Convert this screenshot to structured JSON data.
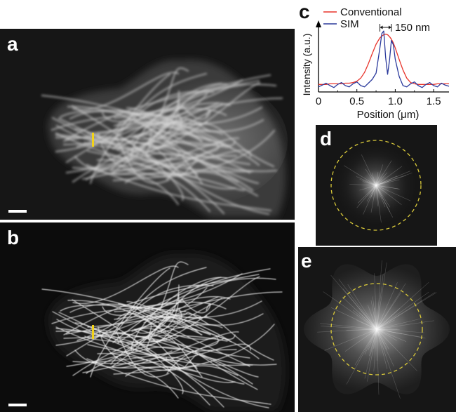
{
  "panels": {
    "a": {
      "letter": "a"
    },
    "b": {
      "letter": "b"
    },
    "c": {
      "letter": "c"
    },
    "d": {
      "letter": "d"
    },
    "e": {
      "letter": "e"
    }
  },
  "colors": {
    "conventional": "#e8332a",
    "sim": "#2b3a9c",
    "marker": "#f2d318",
    "circle": "#d9c93a"
  },
  "chart_data": {
    "type": "line",
    "title": "",
    "xlabel": "Position (μm)",
    "ylabel": "Intensity (a.u.)",
    "xlim": [
      0,
      1.7
    ],
    "ylim": [
      0,
      1.05
    ],
    "xticks": [
      "0",
      "0.5",
      "1.0",
      "1.5"
    ],
    "xtick_values": [
      0,
      0.5,
      1.0,
      1.5
    ],
    "legend_position": "top",
    "annotation": "150 nm",
    "annotation_range": [
      0.8,
      0.95
    ],
    "x": [
      0,
      0.05,
      0.1,
      0.15,
      0.2,
      0.25,
      0.3,
      0.35,
      0.4,
      0.45,
      0.5,
      0.55,
      0.6,
      0.65,
      0.7,
      0.75,
      0.8,
      0.825,
      0.85,
      0.875,
      0.9,
      0.925,
      0.95,
      0.975,
      1.0,
      1.05,
      1.1,
      1.15,
      1.2,
      1.25,
      1.3,
      1.35,
      1.4,
      1.45,
      1.5,
      1.55,
      1.6,
      1.65,
      1.7
    ],
    "series": [
      {
        "name": "Conventional",
        "color": "#e8332a",
        "values": [
          0.12,
          0.12,
          0.12,
          0.13,
          0.13,
          0.13,
          0.13,
          0.14,
          0.14,
          0.15,
          0.17,
          0.22,
          0.31,
          0.45,
          0.61,
          0.76,
          0.86,
          0.89,
          0.91,
          0.92,
          0.91,
          0.88,
          0.84,
          0.78,
          0.7,
          0.52,
          0.35,
          0.22,
          0.15,
          0.13,
          0.12,
          0.12,
          0.12,
          0.12,
          0.12,
          0.13,
          0.13,
          0.13,
          0.13
        ]
      },
      {
        "name": "SIM",
        "color": "#2b3a9c",
        "values": [
          0.08,
          0.11,
          0.14,
          0.1,
          0.07,
          0.12,
          0.15,
          0.1,
          0.08,
          0.13,
          0.16,
          0.1,
          0.08,
          0.14,
          0.2,
          0.3,
          0.7,
          0.93,
          0.97,
          0.55,
          0.28,
          0.5,
          0.82,
          0.75,
          0.52,
          0.25,
          0.1,
          0.08,
          0.13,
          0.16,
          0.1,
          0.07,
          0.12,
          0.15,
          0.1,
          0.08,
          0.14,
          0.11,
          0.09
        ]
      }
    ]
  }
}
